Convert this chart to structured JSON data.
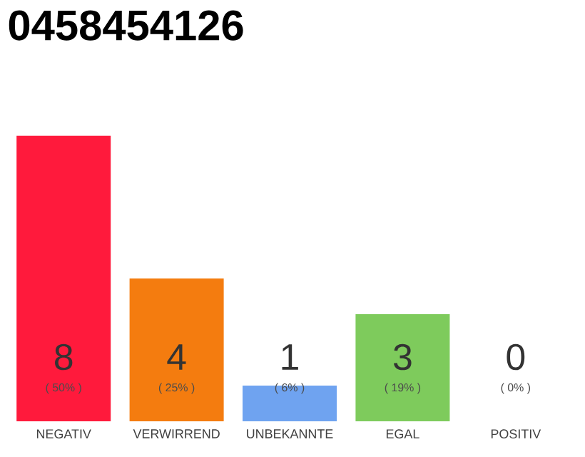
{
  "chart_data": {
    "type": "bar",
    "title": "0458454126",
    "categories": [
      "NEGATIV",
      "VERWIRREND",
      "UNBEKANNTE",
      "EGAL",
      "POSITIV"
    ],
    "values": [
      8,
      4,
      1,
      3,
      0
    ],
    "colors": [
      "#ff1a3c",
      "#f47c0f",
      "#6fa3f0",
      "#7ecb5c",
      "#d0d0d0"
    ],
    "ylim": [
      0,
      8
    ],
    "tick_labels": "x",
    "data_labels": true,
    "annotations": [
      "( 50% )",
      "( 25% )",
      "( 6% )",
      "( 19% )",
      "( 0% )"
    ]
  }
}
